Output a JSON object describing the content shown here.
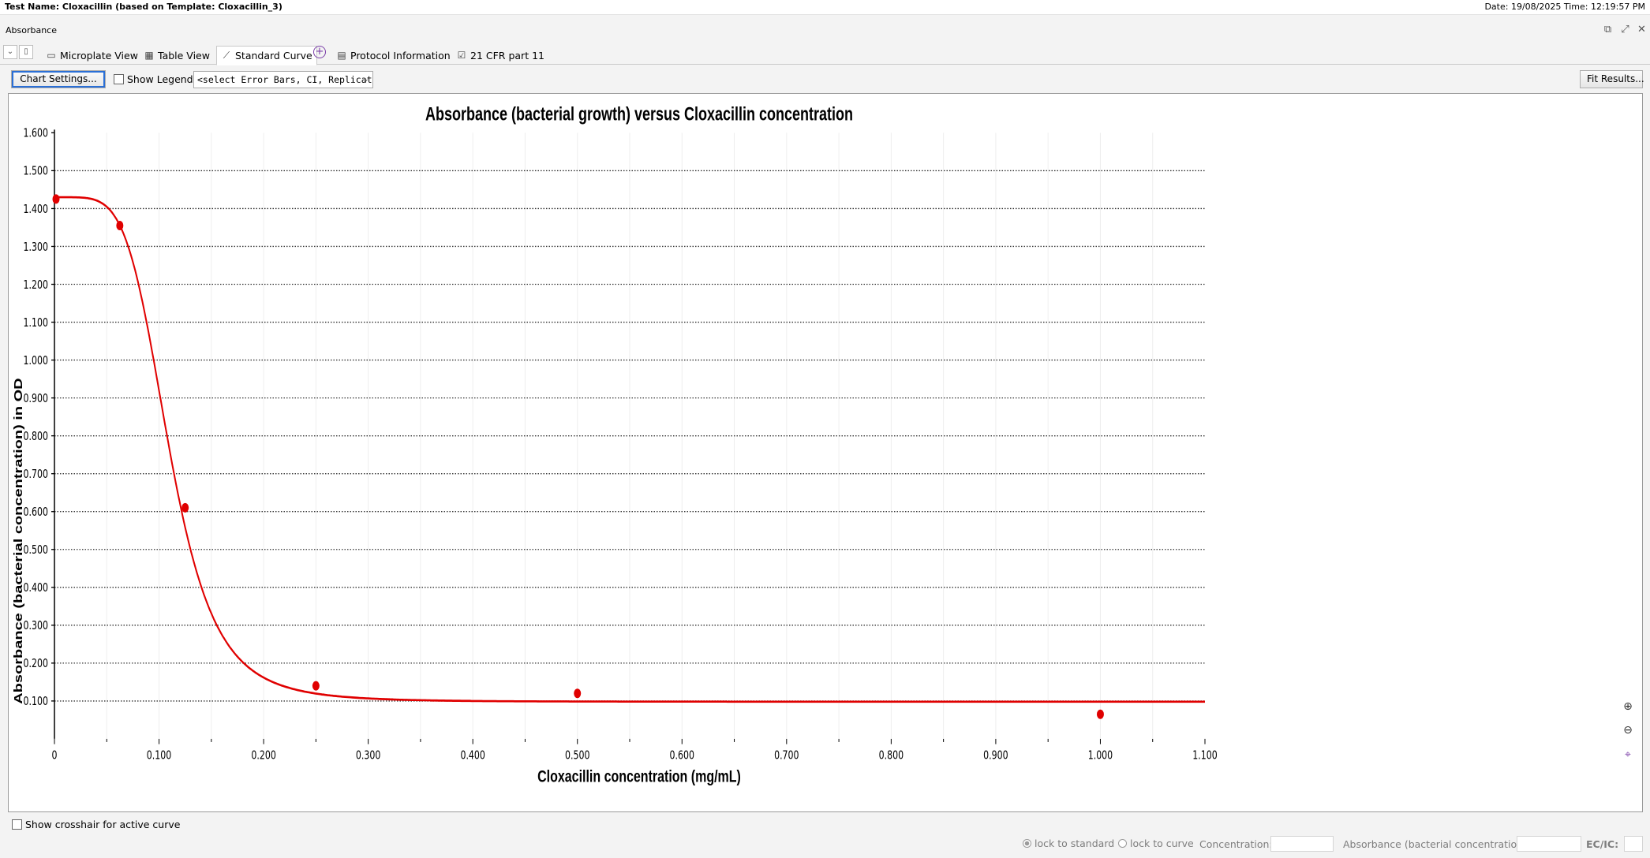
{
  "header": {
    "test_name": "Test Name: Cloxacillin (based on Template: Cloxacillin_3)",
    "datetime": "Date: 19/08/2025  Time: 12:19:57 PM"
  },
  "section": {
    "title": "Absorbance"
  },
  "tabs": [
    {
      "label": "Microplate View",
      "icon": "microplate-icon"
    },
    {
      "label": "Table View",
      "icon": "table-icon"
    },
    {
      "label": "Standard Curve",
      "icon": "curve-icon",
      "active": true
    },
    {
      "label": "Protocol Information",
      "icon": "protocol-icon"
    },
    {
      "label": "21 CFR part 11",
      "icon": "checklist-icon"
    }
  ],
  "toolbar": {
    "chart_settings": "Chart Settings...",
    "show_legend": "Show Legend",
    "error_select": "<select Error Bars, CI, Replicates...>",
    "fit_results": "Fit Results..."
  },
  "chart_data": {
    "type": "scatter",
    "title": "Absorbance (bacterial growth) versus Cloxacillin concentration",
    "xlabel": "Cloxacillin concentration (mg/mL)",
    "ylabel": "Absorbance (bacterial concentration) in OD",
    "xlim": [
      0,
      1.1
    ],
    "ylim": [
      0,
      1.6
    ],
    "xticks": [
      "0",
      "0.100",
      "0.200",
      "0.300",
      "0.400",
      "0.500",
      "0.600",
      "0.700",
      "0.800",
      "0.900",
      "1.000",
      "1.100"
    ],
    "yticks": [
      "0.100",
      "0.200",
      "0.300",
      "0.400",
      "0.500",
      "0.600",
      "0.700",
      "0.800",
      "0.900",
      "1.000",
      "1.100",
      "1.200",
      "1.300",
      "1.400",
      "1.500",
      "1.600"
    ],
    "grid": "horizontal dotted",
    "series": [
      {
        "color": "#e00000",
        "points": [
          {
            "x": 0,
            "y": 1.425
          },
          {
            "x": 0.0625,
            "y": 1.355
          },
          {
            "x": 0.125,
            "y": 0.61
          },
          {
            "x": 0.25,
            "y": 0.14
          },
          {
            "x": 0.5,
            "y": 0.12
          },
          {
            "x": 1.0,
            "y": 0.065
          }
        ],
        "fit": {
          "top": 1.43,
          "bottom": 0.098,
          "ec50": 0.11,
          "hill": 5.0
        }
      }
    ]
  },
  "zoom": {
    "zoom_in": "zoom-in-icon",
    "zoom_out": "zoom-out-icon",
    "reset": "zoom-reset-icon"
  },
  "footer": {
    "crosshair": "Show crosshair for active curve",
    "lock_standard": "lock to standard",
    "lock_curve": "lock to curve",
    "concentration_label": "Concentration:",
    "absorbance_label": "Absorbance (bacterial concentration):",
    "ec_label": "EC/IC:"
  }
}
